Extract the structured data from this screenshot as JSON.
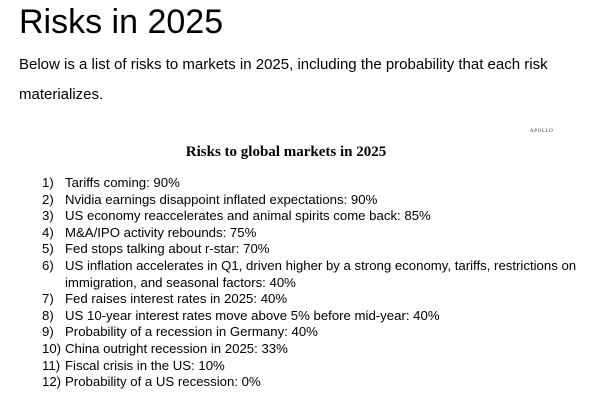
{
  "heading": "Risks in 2025",
  "intro": "Below is a list of risks to markets in 2025, including the probability that each risk materi­alizes.",
  "figure": {
    "brand": "APOLLO",
    "title": "Risks to global markets in 2025",
    "items": [
      {
        "num": "1)",
        "text": "Tariffs coming: 90%"
      },
      {
        "num": "2)",
        "text": "Nvidia earnings disappoint inflated expectations: 90%"
      },
      {
        "num": "3)",
        "text": "US economy reaccelerates and animal spirits come back: 85%"
      },
      {
        "num": "4)",
        "text": "M&A/IPO activity rebounds: 75%"
      },
      {
        "num": "5)",
        "text": "Fed stops talking about r-star: 70%"
      },
      {
        "num": "6)",
        "text": "US inflation accelerates in Q1, driven higher by a strong economy, tariffs, restrictions on immigration, and seasonal factors: 40%"
      },
      {
        "num": "7)",
        "text": "Fed raises interest rates in 2025: 40%"
      },
      {
        "num": "8)",
        "text": "US 10-year interest rates move above 5% before mid-year: 40%"
      },
      {
        "num": "9)",
        "text": "Probability of a recession in Germany: 40%"
      },
      {
        "num": "10)",
        "text": "China outright recession in 2025: 33%"
      },
      {
        "num": "11)",
        "text": "Fiscal crisis in the US: 10%"
      },
      {
        "num": "12)",
        "text": "Probability of a US recession: 0%"
      }
    ]
  }
}
